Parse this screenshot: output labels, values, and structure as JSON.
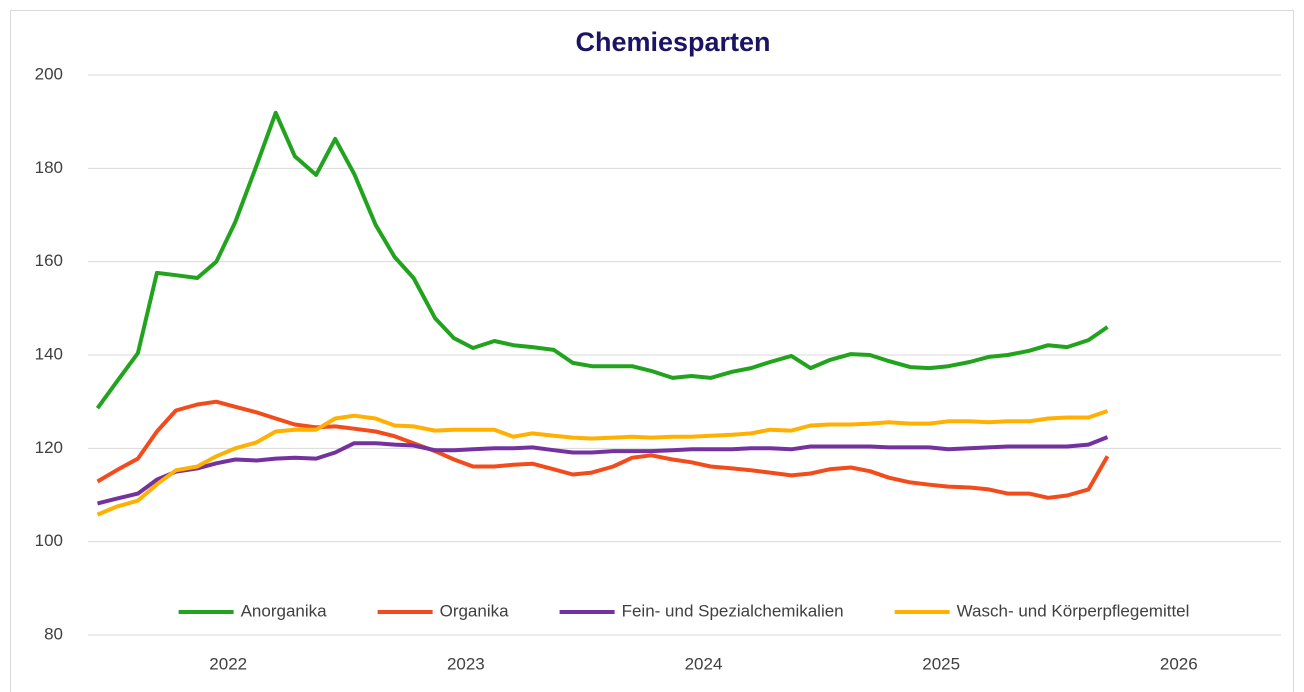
{
  "chart_data": {
    "type": "line",
    "title": "Chemiesparten",
    "x": [
      2021.45,
      2021.53,
      2021.62,
      2021.7,
      2021.78,
      2021.87,
      2021.95,
      2022.03,
      2022.12,
      2022.2,
      2022.28,
      2022.37,
      2022.45,
      2022.53,
      2022.62,
      2022.7,
      2022.78,
      2022.87,
      2022.95,
      2023.03,
      2023.12,
      2023.2,
      2023.28,
      2023.37,
      2023.45,
      2023.53,
      2023.62,
      2023.7,
      2023.78,
      2023.87,
      2023.95,
      2024.03,
      2024.12,
      2024.2,
      2024.28,
      2024.37,
      2024.45,
      2024.53,
      2024.62,
      2024.7,
      2024.78,
      2024.87,
      2024.95,
      2025.03,
      2025.12,
      2025.2,
      2025.28,
      2025.37,
      2025.45,
      2025.53,
      2025.62,
      2025.7
    ],
    "xlim": [
      2021.41,
      2026.43
    ],
    "xticks": [
      2022,
      2023,
      2024,
      2025,
      2026
    ],
    "ylim": [
      80,
      200
    ],
    "yticks": [
      80,
      100,
      120,
      140,
      160,
      180,
      200
    ],
    "grid": true,
    "legend": "bottom",
    "series": [
      {
        "name": "Anorganika",
        "color": "#22a31e",
        "values": [
          128.6,
          134.2,
          140.4,
          157.6,
          157.1,
          156.5,
          160,
          168.5,
          180.7,
          191.9,
          182.6,
          178.6,
          186.3,
          178.8,
          167.9,
          161,
          156.5,
          147.9,
          143.6,
          141.5,
          143,
          142.1,
          141.7,
          141.1,
          138.3,
          137.6,
          137.6,
          137.6,
          136.6,
          135.1,
          135.5,
          135.1,
          136.4,
          137.2,
          138.5,
          139.8,
          137.2,
          138.9,
          140.2,
          140,
          138.7,
          137.4,
          137.2,
          137.6,
          138.5,
          139.6,
          140,
          140.9,
          142.1,
          141.7,
          143.2,
          146
        ]
      },
      {
        "name": "Organika",
        "color": "#f24c1c",
        "values": [
          112.9,
          115.3,
          117.8,
          123.6,
          128.1,
          129.4,
          130,
          128.9,
          127.7,
          126.4,
          125.1,
          124.5,
          124.7,
          124.2,
          123.6,
          122.6,
          121.1,
          119.4,
          117.6,
          116.1,
          116.1,
          116.5,
          116.7,
          115.5,
          114.4,
          114.8,
          116.1,
          118,
          118.5,
          117.6,
          117,
          116.1,
          115.7,
          115.3,
          114.8,
          114.2,
          114.6,
          115.5,
          115.9,
          115.1,
          113.7,
          112.7,
          112.2,
          111.8,
          111.6,
          111.2,
          110.3,
          110.3,
          109.4,
          109.9,
          111.2,
          118.3
        ]
      },
      {
        "name": "Fein- und Spezialchemikalien",
        "color": "#7432a0",
        "values": [
          108.2,
          109.2,
          110.3,
          113.3,
          115,
          115.7,
          116.8,
          117.6,
          117.4,
          117.8,
          118,
          117.8,
          119.1,
          121.1,
          121.1,
          120.8,
          120.6,
          119.6,
          119.6,
          119.8,
          120,
          120,
          120.2,
          119.6,
          119.1,
          119.1,
          119.4,
          119.4,
          119.4,
          119.6,
          119.8,
          119.8,
          119.8,
          120,
          120,
          119.8,
          120.4,
          120.4,
          120.4,
          120.4,
          120.2,
          120.2,
          120.2,
          119.8,
          120,
          120.2,
          120.4,
          120.4,
          120.4,
          120.4,
          120.8,
          122.4
        ]
      },
      {
        "name": "Wasch- und Körperpflegemittel",
        "color": "#ffb000",
        "values": [
          105.8,
          107.5,
          108.8,
          112.3,
          115.3,
          116.1,
          118.3,
          120,
          121.3,
          123.6,
          124,
          124,
          126.4,
          127,
          126.4,
          124.9,
          124.7,
          123.8,
          124,
          124,
          124,
          122.5,
          123.2,
          122.7,
          122.3,
          122.1,
          122.3,
          122.5,
          122.3,
          122.5,
          122.5,
          122.7,
          122.9,
          123.2,
          124,
          123.8,
          124.9,
          125.1,
          125.1,
          125.3,
          125.6,
          125.3,
          125.3,
          125.8,
          125.8,
          125.6,
          125.8,
          125.8,
          126.4,
          126.6,
          126.6,
          128
        ]
      }
    ]
  }
}
